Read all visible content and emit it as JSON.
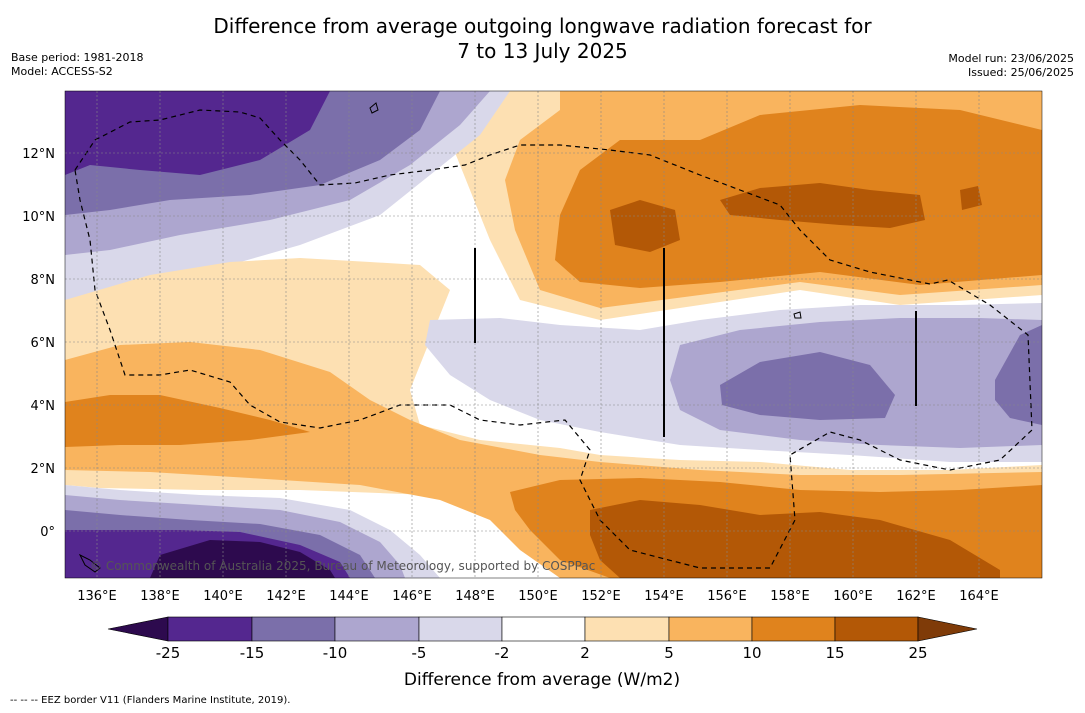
{
  "header": {
    "title_line1": "Difference from average outgoing longwave radiation forecast for",
    "title_line2": "7 to 13 July 2025",
    "base_period": "Base period: 1981-2018",
    "model": "Model: ACCESS-S2",
    "model_run": "Model run: 23/06/2025",
    "issued": "Issued: 25/06/2025"
  },
  "map": {
    "lat_labels": [
      "12°N",
      "10°N",
      "8°N",
      "6°N",
      "4°N",
      "2°N",
      "0°"
    ],
    "lon_labels": [
      "136°E",
      "138°E",
      "140°E",
      "142°E",
      "144°E",
      "146°E",
      "148°E",
      "150°E",
      "152°E",
      "154°E",
      "156°E",
      "158°E",
      "160°E",
      "162°E",
      "164°E"
    ],
    "copyright": "© Commonwealth of Australia 2025, Bureau of Meteorology, supported by COSPPac"
  },
  "colorbar": {
    "title": "Difference from average (W/m2)",
    "tick_labels": [
      "-25",
      "-15",
      "-10",
      "-5",
      "-2",
      "2",
      "5",
      "10",
      "15",
      "25"
    ],
    "colors": [
      "#2d0a4e",
      "#54278f",
      "#7b6faa",
      "#ada6cf",
      "#d9d8ea",
      "#ffffff",
      "#fde0b2",
      "#f9b45e",
      "#e0831d",
      "#b35806",
      "#7f3b08"
    ]
  },
  "footer": {
    "eez_note": "--  --  -- EEZ border V11 (Flanders Marine Institute, 2019)."
  }
}
